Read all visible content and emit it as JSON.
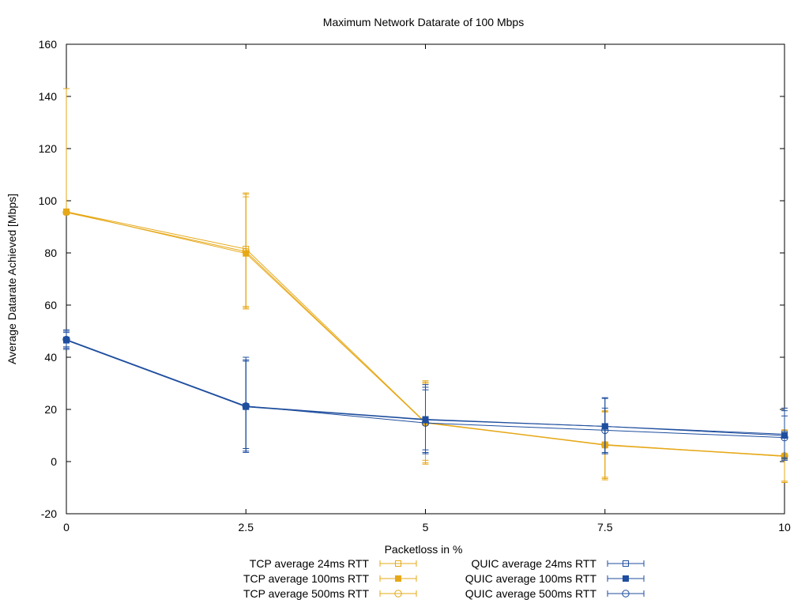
{
  "chart_data": {
    "type": "line",
    "title": "Maximum Network Datarate of 100 Mbps",
    "xlabel": "Packetloss in %",
    "ylabel": "Average Datarate Achieved [Mbps]",
    "xlim": [
      0,
      10
    ],
    "ylim": [
      -20,
      160
    ],
    "x_ticks": [
      "0",
      "2.5",
      "5",
      "7.5",
      "10"
    ],
    "y_ticks": [
      "-20",
      "0",
      "20",
      "40",
      "60",
      "80",
      "100",
      "120",
      "140",
      "160"
    ],
    "grid": false,
    "legend_position": "bottom",
    "x": [
      0,
      2.5,
      5,
      7.5,
      10
    ],
    "series": [
      {
        "name": "TCP average 24ms RTT",
        "color": "#e6a817",
        "marker": "open-square",
        "values": [
          95.8,
          81.5,
          15.0,
          6.5,
          2.0
        ],
        "err": [
          [
            95.8,
            95.8
          ],
          [
            59.5,
            102.5
          ],
          [
            -1.0,
            30.5
          ],
          [
            -7.0,
            19.5
          ],
          [
            -8.0,
            12.0
          ]
        ]
      },
      {
        "name": "TCP average 100ms RTT",
        "color": "#e6a817",
        "marker": "filled-square",
        "values": [
          95.8,
          79.8,
          15.0,
          6.3,
          2.0
        ],
        "err": [
          [
            95.8,
            95.8
          ],
          [
            58.5,
            101.5
          ],
          [
            0.5,
            31.0
          ],
          [
            -6.0,
            19.0
          ],
          [
            -7.5,
            11.5
          ]
        ]
      },
      {
        "name": "TCP average 500ms RTT",
        "color": "#e6a817",
        "marker": "open-circle",
        "values": [
          95.5,
          80.5,
          14.8,
          6.4,
          2.2
        ],
        "err": [
          [
            95.5,
            143.0
          ],
          [
            59.0,
            103.0
          ],
          [
            -0.5,
            30.0
          ],
          [
            -6.5,
            19.2
          ],
          [
            -8.0,
            12.2
          ]
        ]
      },
      {
        "name": "QUIC average 24ms RTT",
        "color": "#1f4e9e",
        "marker": "open-square",
        "values": [
          46.7,
          21.2,
          16.2,
          13.5,
          10.5
        ],
        "err": [
          [
            43.5,
            50.5
          ],
          [
            4.0,
            39.0
          ],
          [
            3.5,
            28.5
          ],
          [
            3.5,
            24.2
          ],
          [
            1.5,
            19.5
          ]
        ]
      },
      {
        "name": "QUIC average 100ms RTT",
        "color": "#1f4e9e",
        "marker": "filled-square",
        "values": [
          46.5,
          21.0,
          16.0,
          13.5,
          10.0
        ],
        "err": [
          [
            43.0,
            50.0
          ],
          [
            3.5,
            38.5
          ],
          [
            3.0,
            29.5
          ],
          [
            3.0,
            24.5
          ],
          [
            1.0,
            20.5
          ]
        ]
      },
      {
        "name": "QUIC average 500ms RTT",
        "color": "#1f4e9e",
        "marker": "open-circle",
        "values": [
          46.8,
          21.3,
          14.8,
          12.0,
          9.2
        ],
        "err": [
          [
            44.0,
            49.5
          ],
          [
            5.0,
            40.0
          ],
          [
            4.5,
            27.5
          ],
          [
            3.0,
            20.5
          ],
          [
            0.5,
            17.5
          ]
        ]
      }
    ]
  }
}
